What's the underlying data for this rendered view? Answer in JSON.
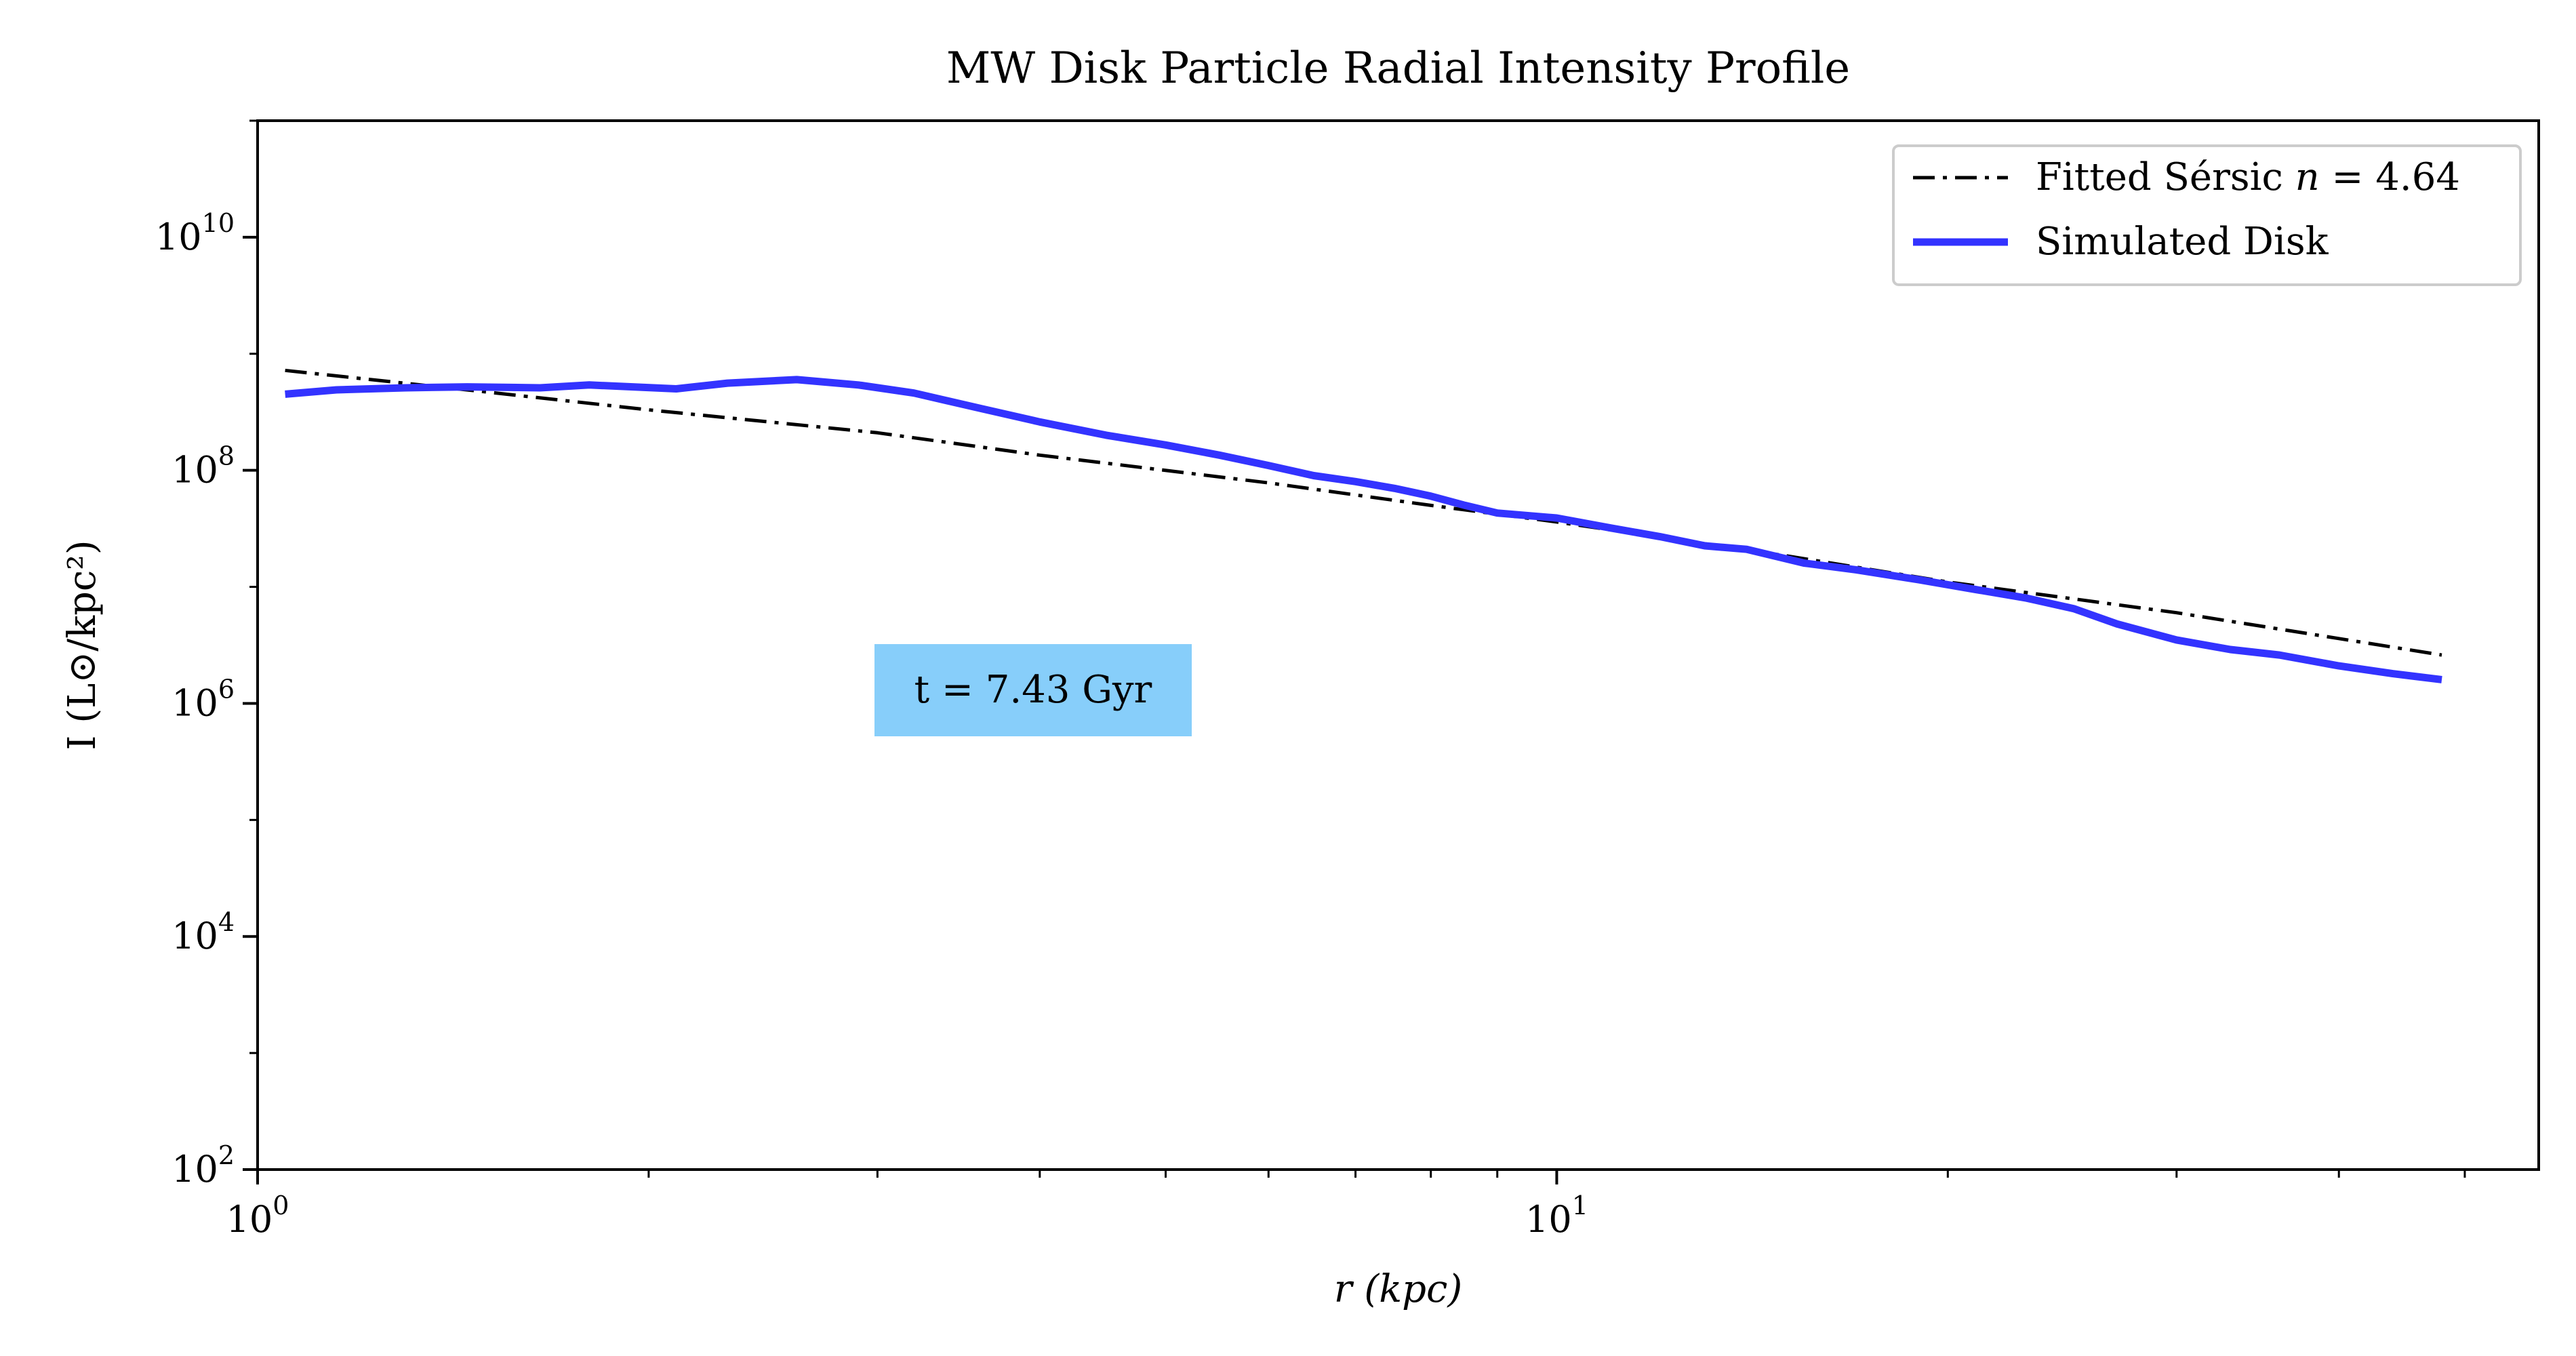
{
  "chart_data": {
    "type": "line",
    "title": "MW Disk Particle Radial Intensity Profile",
    "xlabel": "r (kpc)",
    "ylabel": "I (L⊙/kpc²)",
    "xscale": "log",
    "yscale": "log",
    "xlim": [
      1.0,
      57.0
    ],
    "ylim": [
      100,
      100000000000.0
    ],
    "x_ticks": [
      {
        "value": 1,
        "base": "10",
        "exp": "0"
      },
      {
        "value": 10,
        "base": "10",
        "exp": "1"
      }
    ],
    "y_ticks": [
      {
        "value": 100,
        "base": "10",
        "exp": "2"
      },
      {
        "value": 10000,
        "base": "10",
        "exp": "4"
      },
      {
        "value": 1000000,
        "base": "10",
        "exp": "6"
      },
      {
        "value": 100000000,
        "base": "10",
        "exp": "8"
      },
      {
        "value": 10000000000,
        "base": "10",
        "exp": "10"
      }
    ],
    "grid": false,
    "legend_position": "top-right",
    "annotation": {
      "text": "t = 7.43 Gyr",
      "background": "#87CEFA"
    },
    "colors": {
      "fit": "#000000",
      "disk": "#3333ff"
    },
    "series": [
      {
        "name": "Fitted Sérsic n = 4.64",
        "legend_prefix": "Fitted Sérsic ",
        "legend_math": "n",
        "legend_suffix": " = 4.64",
        "style": "dashdot",
        "color": "#000000",
        "x": [
          1.05,
          1.5,
          2.0,
          3.0,
          4.0,
          6.0,
          8.0,
          10.0,
          15.0,
          20.0,
          30.0,
          40.0,
          48.0
        ],
        "y": [
          720000000.0,
          470000000.0,
          330000000.0,
          210000000.0,
          135000000.0,
          78000000.0,
          50000000.0,
          36000000.0,
          18500000.0,
          11000000.0,
          6000000.0,
          3600000.0,
          2600000.0
        ]
      },
      {
        "name": "Simulated Disk",
        "style": "solid",
        "color": "#3333ff",
        "x": [
          1.05,
          1.15,
          1.3,
          1.45,
          1.65,
          1.8,
          2.1,
          2.3,
          2.6,
          2.9,
          3.2,
          3.6,
          4.0,
          4.5,
          5.0,
          5.5,
          6.0,
          6.5,
          7.0,
          7.5,
          8.0,
          8.5,
          9.0,
          10.0,
          11.0,
          12.0,
          13.0,
          14.0,
          15.5,
          17.0,
          19.0,
          21.0,
          23.0,
          25.0,
          27.0,
          30.0,
          33.0,
          36.0,
          40.0,
          44.0,
          48.0
        ],
        "y": [
          450000000.0,
          490000000.0,
          510000000.0,
          520000000.0,
          510000000.0,
          540000000.0,
          500000000.0,
          560000000.0,
          600000000.0,
          540000000.0,
          460000000.0,
          340000000.0,
          260000000.0,
          200000000.0,
          165000000.0,
          135000000.0,
          110000000.0,
          90000000.0,
          80000000.0,
          70000000.0,
          60000000.0,
          50000000.0,
          43000000.0,
          39000000.0,
          32000000.0,
          27000000.0,
          22500000.0,
          21000000.0,
          16000000.0,
          14000000.0,
          11500000.0,
          9500000.0,
          8000000.0,
          6500000.0,
          4800000.0,
          3500000.0,
          2900000.0,
          2600000.0,
          2100000.0,
          1800000.0,
          1600000.0
        ]
      }
    ]
  }
}
